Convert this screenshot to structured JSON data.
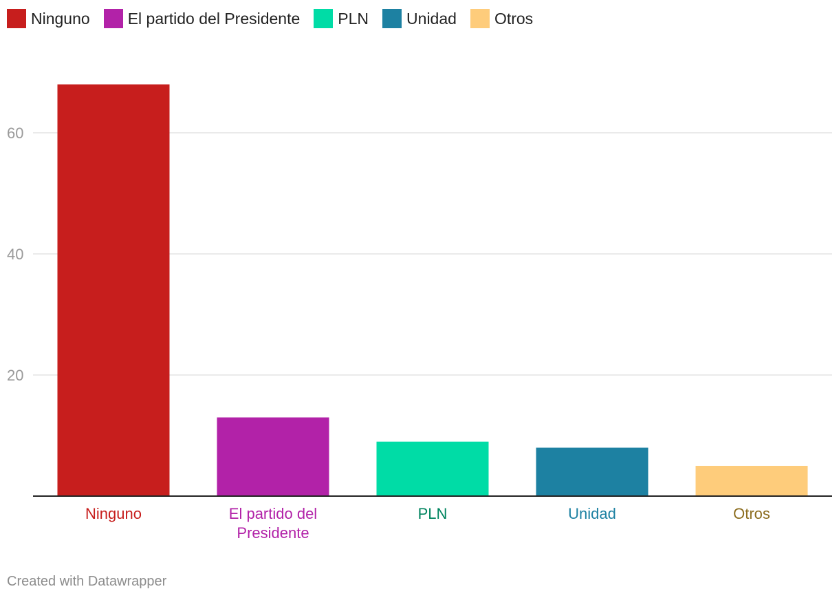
{
  "legend": [
    {
      "label": "Ninguno",
      "color": "#c71e1d"
    },
    {
      "label": "El partido del Presidente",
      "color": "#b222a8"
    },
    {
      "label": "PLN",
      "color": "#00dca6"
    },
    {
      "label": "Unidad",
      "color": "#1d81a2"
    },
    {
      "label": "Otros",
      "color": "#fecc7b"
    }
  ],
  "chart_data": {
    "type": "bar",
    "categories": [
      "Ninguno",
      "El partido del Presidente",
      "PLN",
      "Unidad",
      "Otros"
    ],
    "category_label_lines": [
      [
        "Ninguno"
      ],
      [
        "El partido del",
        "Presidente"
      ],
      [
        "PLN"
      ],
      [
        "Unidad"
      ],
      [
        "Otros"
      ]
    ],
    "values": [
      68,
      13,
      9,
      8,
      5
    ],
    "bar_colors": [
      "#c71e1d",
      "#b222a8",
      "#00dca6",
      "#1d81a2",
      "#fecc7b"
    ],
    "label_colors": [
      "#c71e1d",
      "#b222a8",
      "#00845f",
      "#1d81a2",
      "#8c6d1f"
    ],
    "yticks": [
      20,
      40,
      60
    ],
    "ylim": [
      0,
      73
    ],
    "grid": true,
    "legend_position": "top-left"
  },
  "footer": {
    "credit": "Created with Datawrapper"
  }
}
